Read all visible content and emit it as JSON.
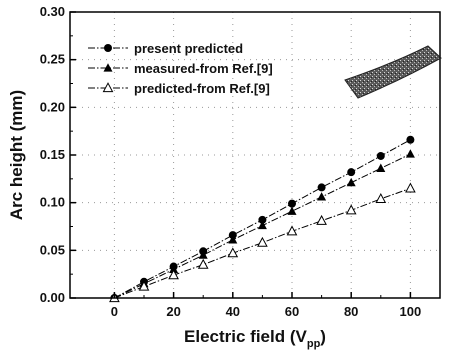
{
  "chart_data": {
    "type": "line",
    "xlabel_main": "Electric field (V",
    "xlabel_sub": "pp",
    "xlabel_close": ")",
    "ylabel": "Arc height (mm)",
    "xlim": [
      -15,
      110
    ],
    "ylim": [
      0,
      0.3
    ],
    "x_ticks": [
      0,
      20,
      40,
      60,
      80,
      100
    ],
    "x_tick_labels": [
      "0",
      "20",
      "40",
      "60",
      "80",
      "100"
    ],
    "y_ticks": [
      0,
      0.05,
      0.1,
      0.15,
      0.2,
      0.25,
      0.3
    ],
    "y_tick_labels": [
      "0.00",
      "0.05",
      "0.10",
      "0.15",
      "0.20",
      "0.25",
      "0.30"
    ],
    "grid": true,
    "legend_position": "top-left",
    "x": [
      0,
      10,
      20,
      30,
      40,
      50,
      60,
      70,
      80,
      90,
      100
    ],
    "series": [
      {
        "name": "present predicted",
        "marker": "filled-circle",
        "line": "dash-dot",
        "values": [
          0,
          0.017,
          0.033,
          0.049,
          0.066,
          0.082,
          0.099,
          0.116,
          0.132,
          0.149,
          0.166
        ]
      },
      {
        "name": "measured-from Ref.[9]",
        "marker": "filled-triangle",
        "line": "dash-dot",
        "values": [
          0,
          0.015,
          0.03,
          0.045,
          0.061,
          0.076,
          0.091,
          0.106,
          0.121,
          0.136,
          0.151
        ]
      },
      {
        "name": "predicted-from Ref.[9]",
        "marker": "open-triangle",
        "line": "dash-dot",
        "values": [
          0,
          0.012,
          0.024,
          0.035,
          0.047,
          0.058,
          0.07,
          0.081,
          0.092,
          0.104,
          0.115
        ]
      }
    ]
  }
}
